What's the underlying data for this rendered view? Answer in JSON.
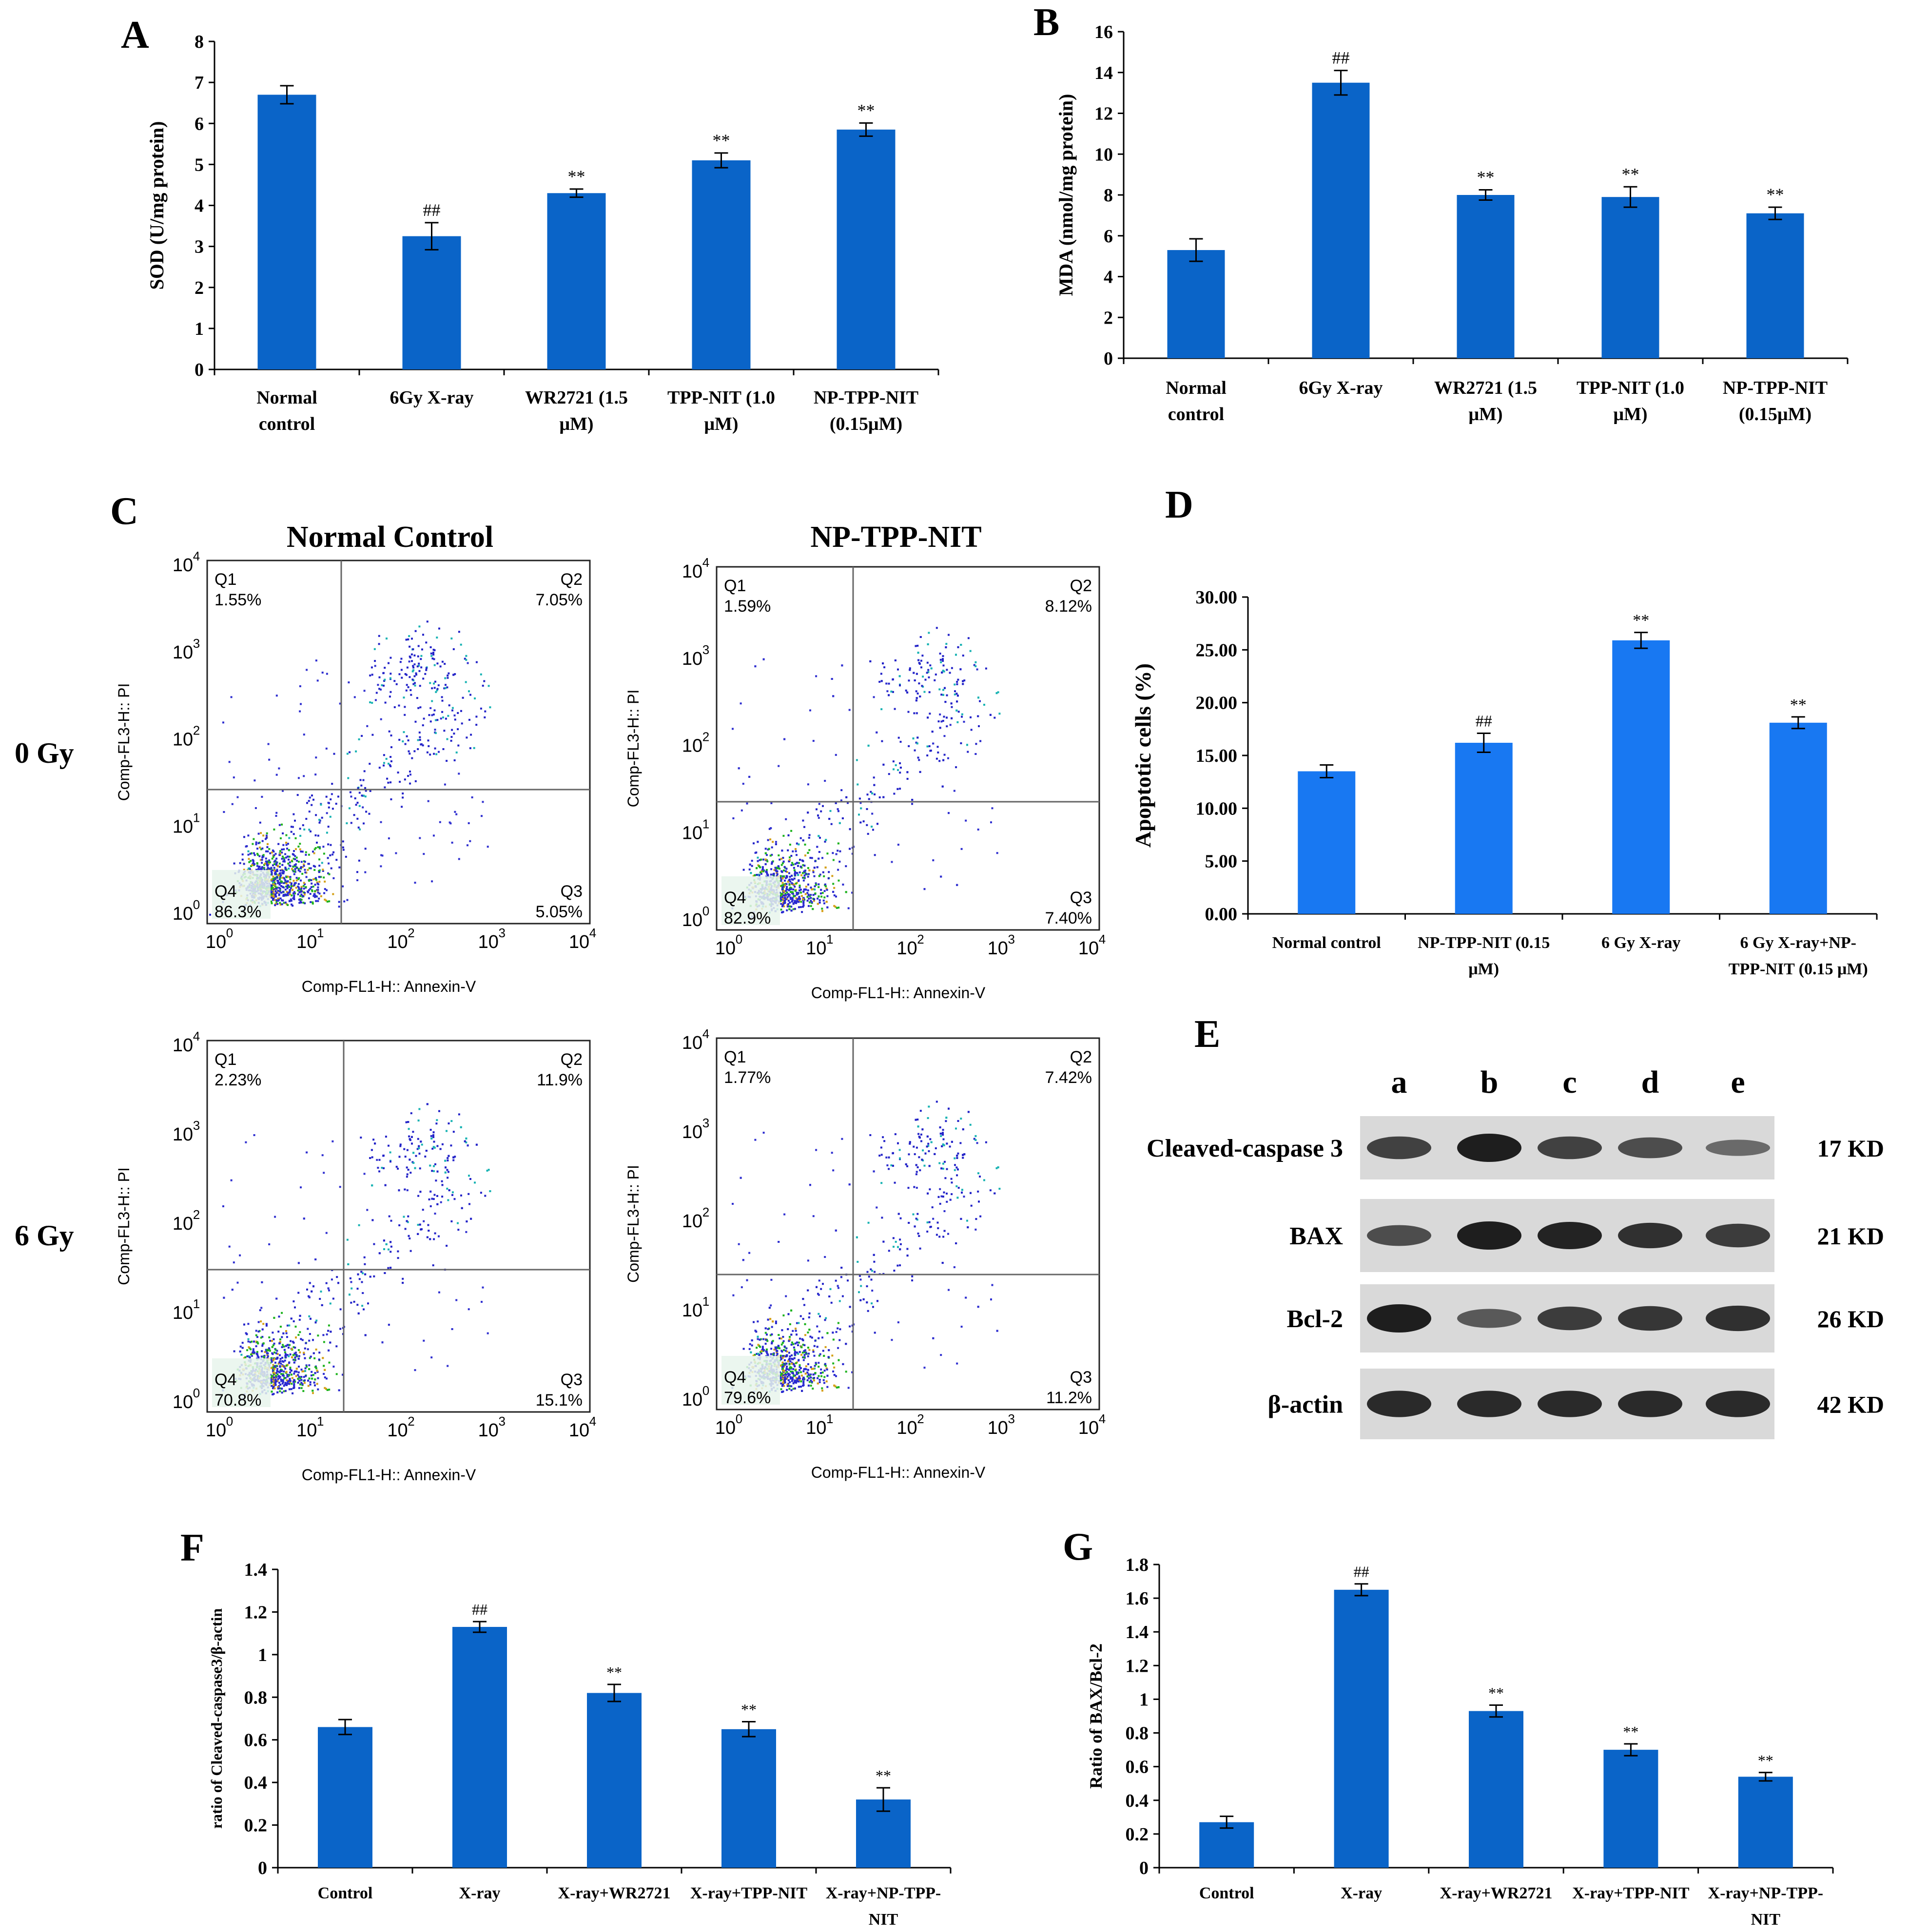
{
  "colors": {
    "bar_dark": "#0a64c8",
    "bar_light": "#1878f2",
    "axis": "#000000",
    "blot_bg": "#d9d9d9"
  },
  "panels": {
    "A": "A",
    "B": "B",
    "C": "C",
    "D": "D",
    "E": "E",
    "F": "F",
    "G": "G"
  },
  "chart_data": [
    {
      "id": "A",
      "type": "bar",
      "title": "",
      "xlabel": "",
      "ylabel": "SOD (U/mg protein)",
      "ylim": [
        0,
        8
      ],
      "yticks": [
        "0",
        "1",
        "2",
        "3",
        "4",
        "5",
        "6",
        "7",
        "8"
      ],
      "categories": [
        [
          "Normal",
          "control"
        ],
        [
          "6Gy X-ray"
        ],
        [
          "WR2721 (1.5",
          "μM)"
        ],
        [
          "TPP-NIT (1.0",
          "μM)"
        ],
        [
          "NP-TPP-NIT",
          "(0.15μM)"
        ]
      ],
      "values": [
        6.7,
        3.25,
        4.3,
        5.1,
        5.85
      ],
      "errors": [
        0.22,
        0.33,
        0.1,
        0.18,
        0.16
      ],
      "annotations": [
        "",
        "##",
        "**",
        "**",
        "**"
      ]
    },
    {
      "id": "B",
      "type": "bar",
      "title": "",
      "xlabel": "",
      "ylabel": "MDA (nmol/mg protein)",
      "ylim": [
        0,
        16
      ],
      "yticks": [
        "0",
        "2",
        "4",
        "6",
        "8",
        "10",
        "12",
        "14",
        "16"
      ],
      "categories": [
        [
          "Normal",
          "control"
        ],
        [
          "6Gy X-ray"
        ],
        [
          "WR2721 (1.5",
          "μM)"
        ],
        [
          "TPP-NIT (1.0",
          "μM)"
        ],
        [
          "NP-TPP-NIT",
          "(0.15μM)"
        ]
      ],
      "values": [
        5.3,
        13.5,
        8.0,
        7.9,
        7.1
      ],
      "errors": [
        0.55,
        0.6,
        0.25,
        0.5,
        0.3
      ],
      "annotations": [
        "",
        "##",
        "**",
        "**",
        "**"
      ]
    },
    {
      "id": "D",
      "type": "bar",
      "title": "",
      "xlabel": "",
      "ylabel": "Apoptotic cells (%)",
      "ylim": [
        0,
        30
      ],
      "yticks": [
        "0.00",
        "5.00",
        "10.00",
        "15.00",
        "20.00",
        "25.00",
        "30.00"
      ],
      "categories": [
        [
          "Normal control"
        ],
        [
          "NP-TPP-NIT (0.15",
          "μM)"
        ],
        [
          "6 Gy X-ray"
        ],
        [
          "6 Gy X-ray+NP-",
          "TPP-NIT (0.15 μM)"
        ]
      ],
      "values": [
        13.5,
        16.2,
        25.9,
        18.1
      ],
      "errors": [
        0.6,
        0.9,
        0.75,
        0.55
      ],
      "annotations": [
        "",
        "##",
        "**",
        "**"
      ]
    },
    {
      "id": "F",
      "type": "bar",
      "title": "",
      "xlabel": "",
      "ylabel": "ratio of Cleaved-caspase3/β-actin",
      "ylim": [
        0,
        1.4
      ],
      "yticks": [
        "0",
        "0.2",
        "0.4",
        "0.6",
        "0.8",
        "1",
        "1.2",
        "1.4"
      ],
      "categories": [
        [
          "Control"
        ],
        [
          "X-ray"
        ],
        [
          "X-ray+WR2721"
        ],
        [
          "X-ray+TPP-NIT"
        ],
        [
          "X-ray+NP-TPP-",
          "NIT"
        ]
      ],
      "values": [
        0.66,
        1.13,
        0.82,
        0.65,
        0.32
      ],
      "errors": [
        0.035,
        0.025,
        0.04,
        0.035,
        0.055
      ],
      "annotations": [
        "",
        "##",
        "**",
        "**",
        "**"
      ]
    },
    {
      "id": "G",
      "type": "bar",
      "title": "",
      "xlabel": "",
      "ylabel": "Ratio of BAX/Bcl-2",
      "ylim": [
        0,
        1.8
      ],
      "yticks": [
        "0",
        "0.2",
        "0.4",
        "0.6",
        "0.8",
        "1",
        "1.2",
        "1.4",
        "1.6",
        "1.8"
      ],
      "categories": [
        [
          "Control"
        ],
        [
          "X-ray"
        ],
        [
          "X-ray+WR2721"
        ],
        [
          "X-ray+TPP-NIT"
        ],
        [
          "X-ray+NP-TPP-",
          "NIT"
        ]
      ],
      "values": [
        0.27,
        1.65,
        0.93,
        0.7,
        0.54
      ],
      "errors": [
        0.035,
        0.035,
        0.035,
        0.035,
        0.025
      ],
      "annotations": [
        "",
        "##",
        "**",
        "**",
        "**"
      ]
    }
  ],
  "flow": {
    "col_titles": [
      "Normal Control",
      "NP-TPP-NIT"
    ],
    "row_labels": [
      "0 Gy",
      "6 Gy"
    ],
    "ylabel": "Comp-FL3-H:: PI",
    "xlabel": "Comp-FL1-H:: Annexin-V",
    "tick_base": "10",
    "tick_exps": [
      "0",
      "1",
      "2",
      "3",
      "4"
    ],
    "plots": [
      {
        "q1": [
          "Q1",
          "1.55%"
        ],
        "q2": [
          "Q2",
          "7.05%"
        ],
        "q3": [
          "Q3",
          "5.05%"
        ],
        "q4": [
          "Q4",
          "86.3%"
        ]
      },
      {
        "q1": [
          "Q1",
          "1.59%"
        ],
        "q2": [
          "Q2",
          "8.12%"
        ],
        "q3": [
          "Q3",
          "7.40%"
        ],
        "q4": [
          "Q4",
          "82.9%"
        ]
      },
      {
        "q1": [
          "Q1",
          "2.23%"
        ],
        "q2": [
          "Q2",
          "11.9%"
        ],
        "q3": [
          "Q3",
          "15.1%"
        ],
        "q4": [
          "Q4",
          "70.8%"
        ]
      },
      {
        "q1": [
          "Q1",
          "1.77%"
        ],
        "q2": [
          "Q2",
          "7.42%"
        ],
        "q3": [
          "Q3",
          "11.2%"
        ],
        "q4": [
          "Q4",
          "79.6%"
        ]
      }
    ]
  },
  "western": {
    "lanes": [
      "a",
      "b",
      "c",
      "d",
      "e"
    ],
    "proteins": [
      {
        "name": "Cleaved-caspase 3",
        "kd": "17 KD",
        "intensity": [
          0.7,
          1.0,
          0.7,
          0.6,
          0.35
        ]
      },
      {
        "name": "BAX",
        "kd": "21 KD",
        "intensity": [
          0.6,
          1.0,
          0.95,
          0.85,
          0.75
        ]
      },
      {
        "name": "Bcl-2",
        "kd": "26 KD",
        "intensity": [
          1.0,
          0.5,
          0.75,
          0.8,
          0.85
        ]
      },
      {
        "name": "β-actin",
        "kd": "42 KD",
        "intensity": [
          0.9,
          0.9,
          0.9,
          0.9,
          0.9
        ]
      }
    ]
  }
}
